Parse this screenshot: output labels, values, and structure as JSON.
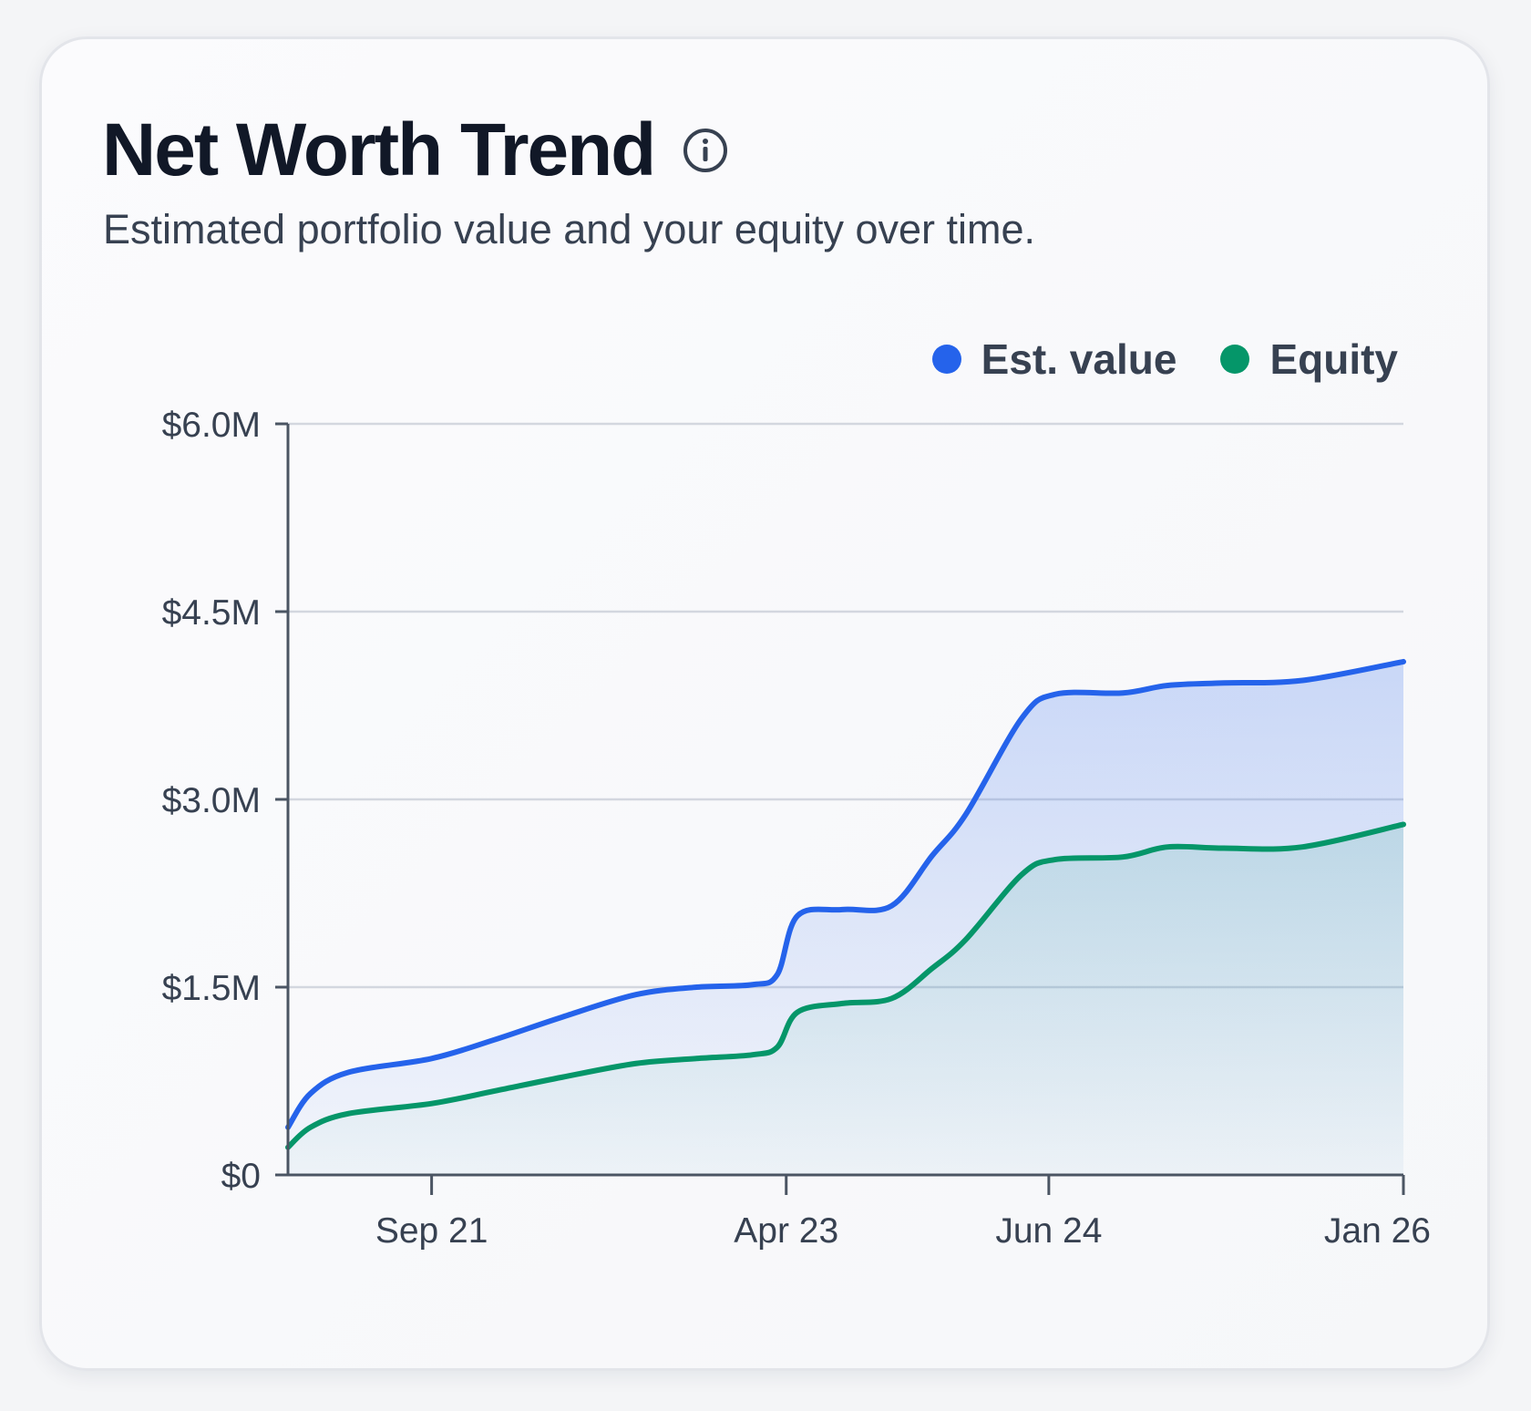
{
  "card": {
    "title": "Net Worth Trend",
    "subtitle": "Estimated portfolio value and your equity over time.",
    "info_icon": "info-circle-icon"
  },
  "colors": {
    "est_value": "#2563eb",
    "equity": "#059669",
    "grid": "#d3d7df",
    "axis": "#4b5563"
  },
  "chart_data": {
    "type": "area",
    "title": "Net Worth Trend",
    "subtitle": "Estimated portfolio value and your equity over time.",
    "legend_position": "top-right",
    "grid": true,
    "x_ticks": [
      {
        "label": "Sep 21",
        "x": 2021.67
      },
      {
        "label": "Apr 23",
        "x": 2023.25
      },
      {
        "label": "Jun 24",
        "x": 2024.42
      },
      {
        "label": "Jan 26",
        "x": 2026.0
      }
    ],
    "y_ticks": [
      {
        "label": "$0",
        "value": 0
      },
      {
        "label": "$1.5M",
        "value": 1.5
      },
      {
        "label": "$3.0M",
        "value": 3.0
      },
      {
        "label": "$4.5M",
        "value": 4.5
      },
      {
        "label": "$6.0M",
        "value": 6.0
      }
    ],
    "xlim": [
      2021.03,
      2026.0
    ],
    "ylim": [
      0,
      6.0
    ],
    "y_unit": "$M",
    "series": [
      {
        "name": "Est. value",
        "color": "#2563eb",
        "points": [
          [
            2021.03,
            0.38
          ],
          [
            2021.13,
            0.65
          ],
          [
            2021.3,
            0.82
          ],
          [
            2021.67,
            0.93
          ],
          [
            2021.95,
            1.08
          ],
          [
            2022.25,
            1.26
          ],
          [
            2022.58,
            1.44
          ],
          [
            2022.85,
            1.5
          ],
          [
            2023.1,
            1.52
          ],
          [
            2023.21,
            1.6
          ],
          [
            2023.3,
            2.07
          ],
          [
            2023.5,
            2.12
          ],
          [
            2023.72,
            2.15
          ],
          [
            2023.9,
            2.55
          ],
          [
            2024.05,
            2.88
          ],
          [
            2024.3,
            3.65
          ],
          [
            2024.45,
            3.84
          ],
          [
            2024.75,
            3.85
          ],
          [
            2024.95,
            3.91
          ],
          [
            2025.2,
            3.93
          ],
          [
            2025.55,
            3.95
          ],
          [
            2026.0,
            4.1
          ]
        ]
      },
      {
        "name": "Equity",
        "color": "#059669",
        "points": [
          [
            2021.03,
            0.22
          ],
          [
            2021.13,
            0.38
          ],
          [
            2021.3,
            0.49
          ],
          [
            2021.67,
            0.57
          ],
          [
            2021.95,
            0.67
          ],
          [
            2022.25,
            0.78
          ],
          [
            2022.58,
            0.89
          ],
          [
            2022.85,
            0.93
          ],
          [
            2023.1,
            0.96
          ],
          [
            2023.21,
            1.02
          ],
          [
            2023.3,
            1.3
          ],
          [
            2023.5,
            1.37
          ],
          [
            2023.72,
            1.41
          ],
          [
            2023.9,
            1.65
          ],
          [
            2024.05,
            1.88
          ],
          [
            2024.3,
            2.4
          ],
          [
            2024.45,
            2.52
          ],
          [
            2024.75,
            2.54
          ],
          [
            2024.95,
            2.62
          ],
          [
            2025.2,
            2.61
          ],
          [
            2025.55,
            2.62
          ],
          [
            2026.0,
            2.8
          ]
        ]
      }
    ]
  }
}
